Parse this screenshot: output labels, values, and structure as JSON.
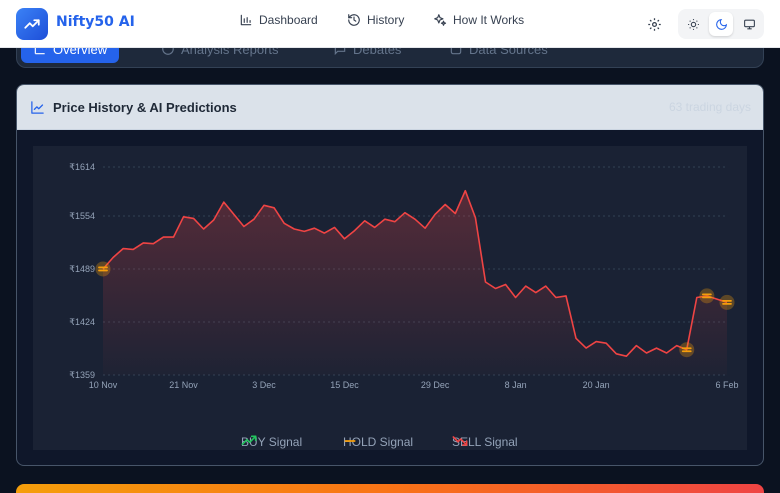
{
  "app": {
    "name": "Nifty50 AI"
  },
  "nav": {
    "dashboard": "Dashboard",
    "history": "History",
    "how_it_works": "How It Works"
  },
  "tabs": [
    {
      "label": "Overview"
    },
    {
      "label": "Analysis Reports"
    },
    {
      "label": "Debates"
    },
    {
      "label": "Data Sources"
    }
  ],
  "card": {
    "title": "Price History & AI Predictions",
    "subtitle": "63 trading days"
  },
  "legend": {
    "buy": "BUY Signal",
    "hold": "HOLD Signal",
    "sell": "SELL Signal"
  },
  "colors": {
    "accent": "#2563eb",
    "line": "#ef4444",
    "buy": "#22c55e",
    "hold": "#f59e0b",
    "sell": "#ef4444"
  },
  "chart_data": {
    "type": "line",
    "currency": "₹",
    "y_ticks": [
      1614,
      1554,
      1489,
      1424,
      1359
    ],
    "ylim": [
      1359,
      1614
    ],
    "x_ticks": [
      {
        "label": "10 Nov",
        "index": 0
      },
      {
        "label": "21 Nov",
        "index": 8
      },
      {
        "label": "3 Dec",
        "index": 16
      },
      {
        "label": "15 Dec",
        "index": 24
      },
      {
        "label": "29 Dec",
        "index": 33
      },
      {
        "label": "8 Jan",
        "index": 41
      },
      {
        "label": "20 Jan",
        "index": 49
      },
      {
        "label": "6 Feb",
        "index": 62
      }
    ],
    "values": [
      1489,
      1503,
      1514,
      1513,
      1521,
      1520,
      1528,
      1528,
      1553,
      1551,
      1538,
      1549,
      1571,
      1556,
      1541,
      1550,
      1567,
      1564,
      1545,
      1538,
      1535,
      1539,
      1533,
      1540,
      1526,
      1536,
      1548,
      1540,
      1550,
      1547,
      1558,
      1550,
      1539,
      1556,
      1568,
      1557,
      1585,
      1552,
      1473,
      1465,
      1470,
      1454,
      1468,
      1460,
      1468,
      1454,
      1456,
      1404,
      1392,
      1400,
      1398,
      1385,
      1382,
      1395,
      1386,
      1392,
      1386,
      1395,
      1390,
      1454,
      1456,
      1452,
      1448
    ],
    "signals": [
      {
        "type": "HOLD",
        "index": 0
      },
      {
        "type": "HOLD",
        "index": 58
      },
      {
        "type": "HOLD",
        "index": 60
      },
      {
        "type": "HOLD",
        "index": 62
      }
    ],
    "legend": [
      "BUY Signal",
      "HOLD Signal",
      "SELL Signal"
    ],
    "grid": true
  }
}
